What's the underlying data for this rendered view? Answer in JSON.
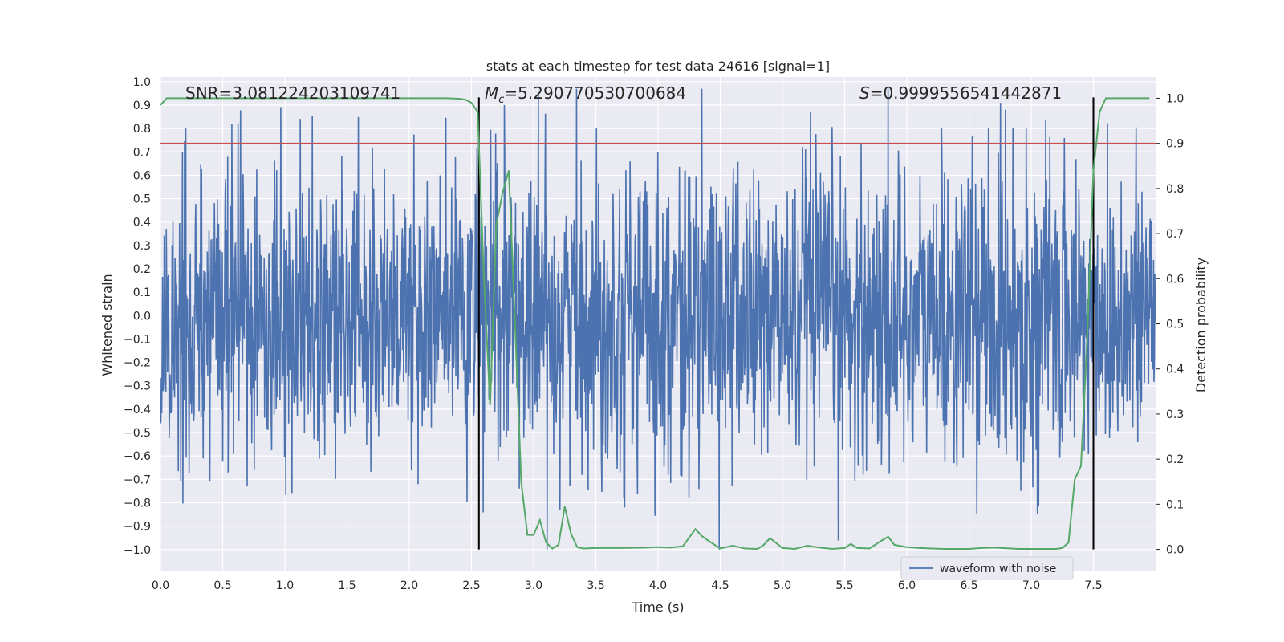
{
  "chart_data": {
    "type": "line",
    "title": "stats at each timestep for test data 24616 [signal=1]",
    "xlabel": "Time (s)",
    "ylabel": "Whitened strain",
    "y2label": "Detection probability",
    "xlim": [
      0.0,
      8.0
    ],
    "ylim": [
      -1.09,
      1.02
    ],
    "y2lim": [
      -0.047,
      1.047
    ],
    "xticks": [
      0.0,
      0.5,
      1.0,
      1.5,
      2.0,
      2.5,
      3.0,
      3.5,
      4.0,
      4.5,
      5.0,
      5.5,
      6.0,
      6.5,
      7.0,
      7.5
    ],
    "yticks": [
      -1.0,
      -0.9,
      -0.8,
      -0.7,
      -0.6,
      -0.5,
      -0.4,
      -0.3,
      -0.2,
      -0.1,
      0.0,
      0.1,
      0.2,
      0.3,
      0.4,
      0.5,
      0.6,
      0.7,
      0.8,
      0.9,
      1.0
    ],
    "y2ticks": [
      0.0,
      0.1,
      0.2,
      0.3,
      0.4,
      0.5,
      0.6,
      0.7,
      0.8,
      0.9,
      1.0
    ],
    "grid": true,
    "legend": {
      "placement": "bottom-right",
      "entries": [
        "waveform with noise"
      ]
    },
    "annotations": {
      "snr": "SNR=3.081224203109741",
      "mc_symbol": "M",
      "mc_sub": "c",
      "mc_value": "=5.290770530700684",
      "s_symbol": "S",
      "s_value": "=0.9999556541442871"
    },
    "threshold_y2": 0.9,
    "vertical_lines_x": [
      2.56,
      7.5
    ],
    "series": [
      {
        "name": "waveform with noise",
        "axis": "left",
        "color": "#4c72b0",
        "kind": "noisy-waveform",
        "x_range": [
          0.0,
          8.0
        ],
        "typical_amplitude": 0.32
      },
      {
        "axis": "right",
        "color": "#55a868",
        "x": [
          0.0,
          0.05,
          0.1,
          0.5,
          1.0,
          1.5,
          2.0,
          2.3,
          2.4,
          2.45,
          2.5,
          2.55,
          2.6,
          2.65,
          2.7,
          2.75,
          2.8,
          2.85,
          2.9,
          2.95,
          3.0,
          3.05,
          3.1,
          3.15,
          3.2,
          3.25,
          3.3,
          3.35,
          3.4,
          3.5,
          3.7,
          3.9,
          4.0,
          4.1,
          4.2,
          4.3,
          4.35,
          4.4,
          4.5,
          4.6,
          4.7,
          4.8,
          4.85,
          4.9,
          5.0,
          5.1,
          5.2,
          5.3,
          5.4,
          5.5,
          5.55,
          5.6,
          5.7,
          5.8,
          5.85,
          5.9,
          6.0,
          6.1,
          6.2,
          6.3,
          6.5,
          6.6,
          6.7,
          6.9,
          7.1,
          7.2,
          7.25,
          7.3,
          7.35,
          7.4,
          7.45,
          7.5,
          7.55,
          7.6,
          7.7,
          7.8,
          7.95
        ],
        "y": [
          0.985,
          1.0,
          1.0,
          1.0,
          1.0,
          1.0,
          1.0,
          1.0,
          0.999,
          0.997,
          0.99,
          0.97,
          0.6,
          0.32,
          0.72,
          0.79,
          0.84,
          0.5,
          0.15,
          0.032,
          0.032,
          0.065,
          0.015,
          0.002,
          0.01,
          0.095,
          0.035,
          0.005,
          0.002,
          0.003,
          0.003,
          0.004,
          0.005,
          0.004,
          0.007,
          0.045,
          0.03,
          0.02,
          0.002,
          0.008,
          0.002,
          0.001,
          0.01,
          0.025,
          0.003,
          0.001,
          0.008,
          0.004,
          0.001,
          0.003,
          0.012,
          0.003,
          0.002,
          0.02,
          0.028,
          0.01,
          0.005,
          0.003,
          0.002,
          0.001,
          0.001,
          0.003,
          0.004,
          0.001,
          0.001,
          0.001,
          0.003,
          0.015,
          0.155,
          0.185,
          0.47,
          0.84,
          0.97,
          1.0,
          1.0,
          1.0,
          1.0
        ]
      }
    ]
  }
}
